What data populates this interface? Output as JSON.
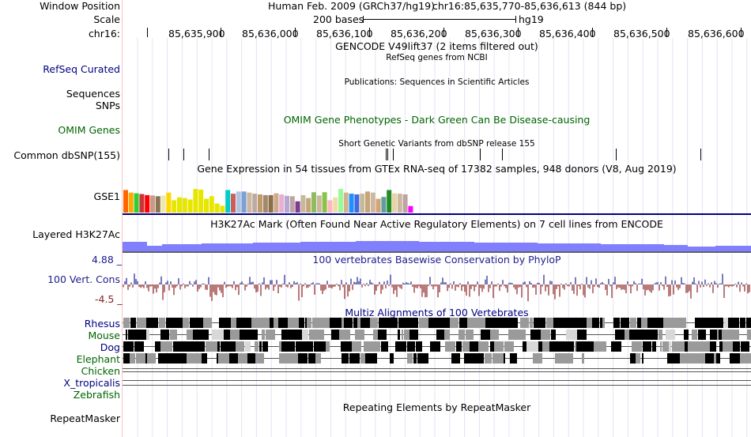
{
  "header": {
    "window_position_label": "Window Position",
    "scale_label": "Scale",
    "chrom_label": "chr16:",
    "assembly": "Human Feb. 2009 (GRCh37/hg19)",
    "position": "chr16:85,635,770-85,636,613 (844 bp)",
    "scale_text": "200 bases",
    "scale_db": "hg19",
    "ruler_ticks": [
      "85,635,900",
      "85,636,000",
      "85,636,100",
      "85,636,200",
      "85,636,300",
      "85,636,400",
      "85,636,500",
      "85,636,600"
    ]
  },
  "tracks": {
    "gencode": {
      "title": "GENCODE V49lift37 (2 items filtered out)"
    },
    "refseq": {
      "label": "RefSeq Curated",
      "title": "RefSeq genes from NCBI"
    },
    "publications": {
      "label": "Sequences",
      "title": "Publications: Sequences in Scientific Articles"
    },
    "snps": {
      "label": "SNPs"
    },
    "omim": {
      "label": "OMIM Genes",
      "title": "OMIM Gene Phenotypes - Dark Green Can Be Disease-causing"
    },
    "dbsnp": {
      "label": "Common dbSNP(155)",
      "title": "Short Genetic Variants from dbSNP release 155"
    },
    "gtex": {
      "label": "GSE1",
      "title": "Gene Expression in 54 tissues from GTEx RNA-seq of 17382 samples, 948 donors (V8, Aug 2019)",
      "values": [
        0.62,
        0.55,
        0.53,
        0.51,
        0.48,
        0.47,
        0.45,
        0.47,
        0.55,
        0.34,
        0.42,
        0.4,
        0.36,
        0.65,
        0.63,
        0.38,
        0.45,
        0.25,
        0.19,
        0.62,
        0.52,
        0.58,
        0.58,
        0.55,
        0.52,
        0.5,
        0.48,
        0.48,
        0.53,
        0.5,
        0.46,
        0.45,
        0.31,
        0.48,
        0.4,
        0.56,
        0.47,
        0.56,
        0.34,
        0.42,
        0.65,
        0.55,
        0.52,
        0.5,
        0.52,
        0.58,
        0.55,
        0.38,
        0.43,
        0.62,
        0.53,
        0.52,
        0.5,
        0.18
      ],
      "colors": [
        "#ff6600",
        "#ffaa00",
        "#33cc33",
        "#cc3333",
        "#ff0000",
        "#cc9988",
        "#8b7355",
        "#eee8aa",
        "#ffd700",
        "#e6e600",
        "#e6e600",
        "#e6e600",
        "#e6e600",
        "#e6e600",
        "#e6e600",
        "#e6e600",
        "#e6e600",
        "#e6e600",
        "#e6e600",
        "#00cccc",
        "#cd5c5c",
        "#b0c4de",
        "#7b9fd8",
        "#cdb79e",
        "#bcaaa4",
        "#c19a6b",
        "#a0896e",
        "#8b6f47",
        "#cdaa8c",
        "#e8b0d0",
        "#b4a7d6",
        "#bfa3a3",
        "#7e3b8f",
        "#c8b89a",
        "#c5a57a",
        "#8fbc5f",
        "#cdb79e",
        "#8bc34a",
        "#ffb6c1",
        "#eeddaa",
        "#98fb98",
        "#d2b48c",
        "#1e90ff",
        "#4169e1",
        "#c8b89a",
        "#c5a57a",
        "#cdb79e",
        "#d4a573",
        "#5f9ea0",
        "#228b22",
        "#e8d4a8",
        "#cdb79e",
        "#bfa3a3",
        "#ff00ff"
      ]
    },
    "h3k27ac": {
      "label": "Layered H3K27Ac",
      "title": "H3K27Ac Mark (Often Found Near Active Regulatory Elements) on 7 cell lines from ENCODE"
    },
    "phylop": {
      "label": "100 Vert. Cons",
      "title": "100 vertebrates Basewise Conservation by PhyloP",
      "max": "4.88 _",
      "min": "-4.5 _"
    },
    "multiz": {
      "title": "Multiz Alignments of 100 Vertebrates",
      "species": [
        {
          "name": "Rhesus",
          "color": "#000080"
        },
        {
          "name": "Mouse",
          "color": "#006400"
        },
        {
          "name": "Dog",
          "color": "#000080"
        },
        {
          "name": "Elephant",
          "color": "#006400"
        },
        {
          "name": "Chicken",
          "color": "#006400"
        },
        {
          "name": "X_tropicalis",
          "color": "#000080"
        },
        {
          "name": "Zebrafish",
          "color": "#006400"
        }
      ]
    },
    "repeatmasker": {
      "label": "RepeatMasker",
      "title": "Repeating Elements by RepeatMasker"
    }
  },
  "colors": {
    "gtex_axis": "#000080",
    "h3k27ac_fill": "#8080ff",
    "phylop_pos": "#20208f",
    "phylop_neg": "#8b2020"
  }
}
